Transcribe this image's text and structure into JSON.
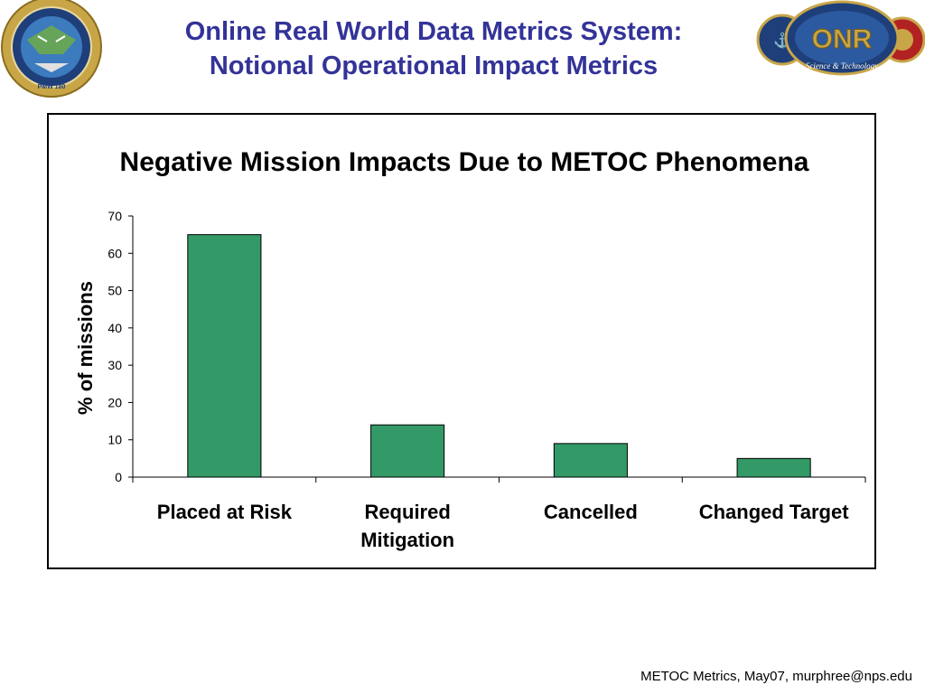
{
  "slide": {
    "title_line1": "Online Real World Data Metrics System:",
    "title_line2": "Notional Operational Impact Metrics",
    "footer": "METOC Metrics, May07, murphree@nps.edu",
    "title_color": "#333399"
  },
  "logos": {
    "left": {
      "icon": "pmw-seal-icon",
      "text": "PMW 180"
    },
    "right": {
      "icon": "onr-logo-icon",
      "text": "ONR",
      "subtext": "Science & Technology"
    }
  },
  "chart_data": {
    "type": "bar",
    "title": "Negative Mission Impacts Due to METOC Phenomena",
    "xlabel": "",
    "ylabel": "% of missions",
    "categories": [
      [
        "Placed at Risk"
      ],
      [
        "Required",
        "Mitigation"
      ],
      [
        "Cancelled"
      ],
      [
        "Changed Target"
      ]
    ],
    "values": [
      65,
      14,
      9,
      5
    ],
    "ylim": [
      0,
      70
    ],
    "yticks": [
      0,
      10,
      20,
      30,
      40,
      50,
      60,
      70
    ],
    "grid": false,
    "legend": "none",
    "bar_color": "#339966"
  }
}
